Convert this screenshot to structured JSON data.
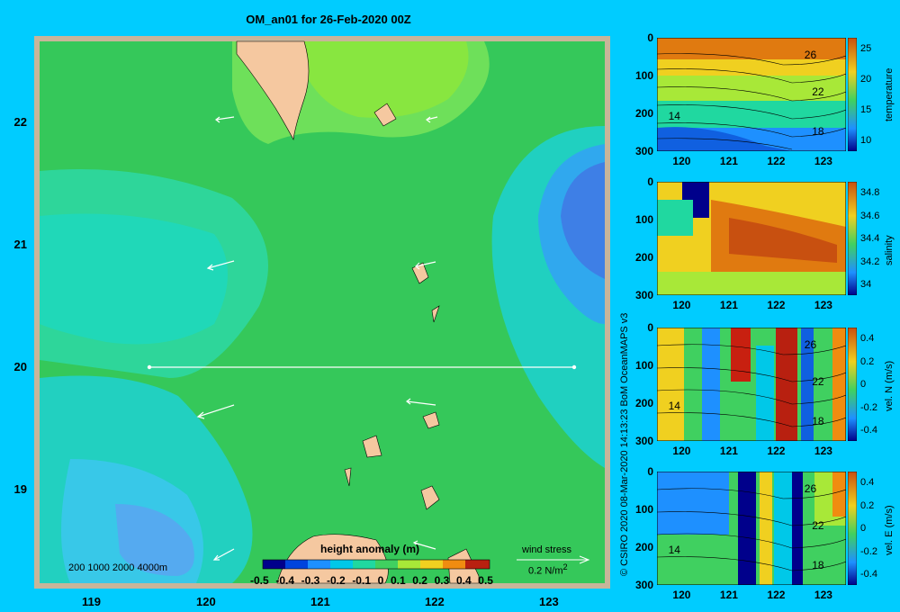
{
  "title": "OM_an01 for 26-Feb-2020 00Z",
  "map": {
    "lon_ticks": [
      "119",
      "120",
      "121",
      "122",
      "123"
    ],
    "lat_ticks": [
      "22",
      "21",
      "20",
      "19"
    ],
    "depth_legend": "200  1000  2000  4000m",
    "section_line": {
      "lon_start": 119.5,
      "lon_end": 123.2,
      "lat": 20.0
    },
    "colorbar": {
      "title": "height anomaly  (m)",
      "tick_labels": [
        "-0.5",
        "-0.4",
        "-0.3",
        "-0.2",
        "-0.1",
        "0",
        "0.1",
        "0.2",
        "0.3",
        "0.4",
        "0.5"
      ]
    },
    "wind_stress": {
      "label": "wind stress",
      "scale": "0.2 N/m",
      "scale_sup": "2"
    }
  },
  "credit": "© CSIRO 2020   08-Mar-2020 14:13:23 BoM OceanMAPS v3",
  "panels": [
    {
      "label": "temperature",
      "y_ticks": [
        "0",
        "100",
        "200",
        "300"
      ],
      "x_ticks": [
        "120",
        "121",
        "122",
        "123"
      ],
      "cbar_ticks": [
        "25",
        "20",
        "15",
        "10"
      ],
      "contours": [
        "26",
        "22",
        "14",
        "18"
      ]
    },
    {
      "label": "salinity",
      "y_ticks": [
        "0",
        "100",
        "200",
        "300"
      ],
      "x_ticks": [
        "120",
        "121",
        "122",
        "123"
      ],
      "cbar_ticks": [
        "34.8",
        "34.6",
        "34.4",
        "34.2",
        "34"
      ],
      "contours": []
    },
    {
      "label": "vel. N  (m/s)",
      "y_ticks": [
        "0",
        "100",
        "200",
        "300"
      ],
      "x_ticks": [
        "120",
        "121",
        "122",
        "123"
      ],
      "cbar_ticks": [
        "0.4",
        "0.2",
        "0",
        "-0.2",
        "-0.4"
      ],
      "contours": [
        "26",
        "22",
        "14",
        "18"
      ]
    },
    {
      "label": "vel. E  (m/s)",
      "y_ticks": [
        "0",
        "100",
        "200",
        "300"
      ],
      "x_ticks": [
        "120",
        "121",
        "122",
        "123"
      ],
      "cbar_ticks": [
        "0.4",
        "0.2",
        "0",
        "-0.2",
        "-0.4"
      ],
      "contours": [
        "26",
        "22",
        "14",
        "18"
      ]
    }
  ]
}
